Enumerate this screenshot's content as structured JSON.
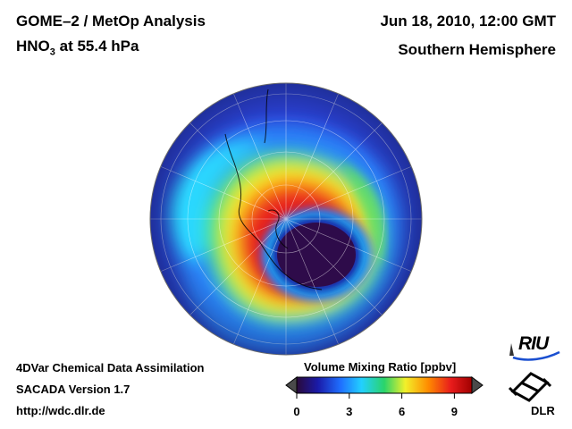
{
  "header": {
    "title_line1": "GOME–2 / MetOp Analysis",
    "title_species": "HNO",
    "title_subscript": "3",
    "title_level": " at 55.4 hPa",
    "date": "Jun 18, 2010, 12:00 GMT",
    "region": "Southern Hemisphere"
  },
  "footer": {
    "line1": "4DVar Chemical Data Assimilation",
    "line2": "SACADA Version 1.7",
    "line3": "http://wdc.dlr.de"
  },
  "colorbar": {
    "title": "Volume Mixing Ratio [ppbv]",
    "min": 0,
    "max": 10,
    "ticks": [
      "0",
      "3",
      "6",
      "9"
    ],
    "colors": [
      "#2a0a3a",
      "#1a1aa8",
      "#1f6fff",
      "#22d0ff",
      "#2ad46a",
      "#f2f02a",
      "#ff8c00",
      "#e81c1c",
      "#a00000"
    ]
  },
  "logos": {
    "riu": "RIU",
    "dlr": "DLR"
  },
  "map_data": {
    "projection": "orthographic, south pole centered",
    "field": "HNO3 volume mixing ratio",
    "units": "ppbv",
    "range": [
      0,
      10
    ]
  }
}
